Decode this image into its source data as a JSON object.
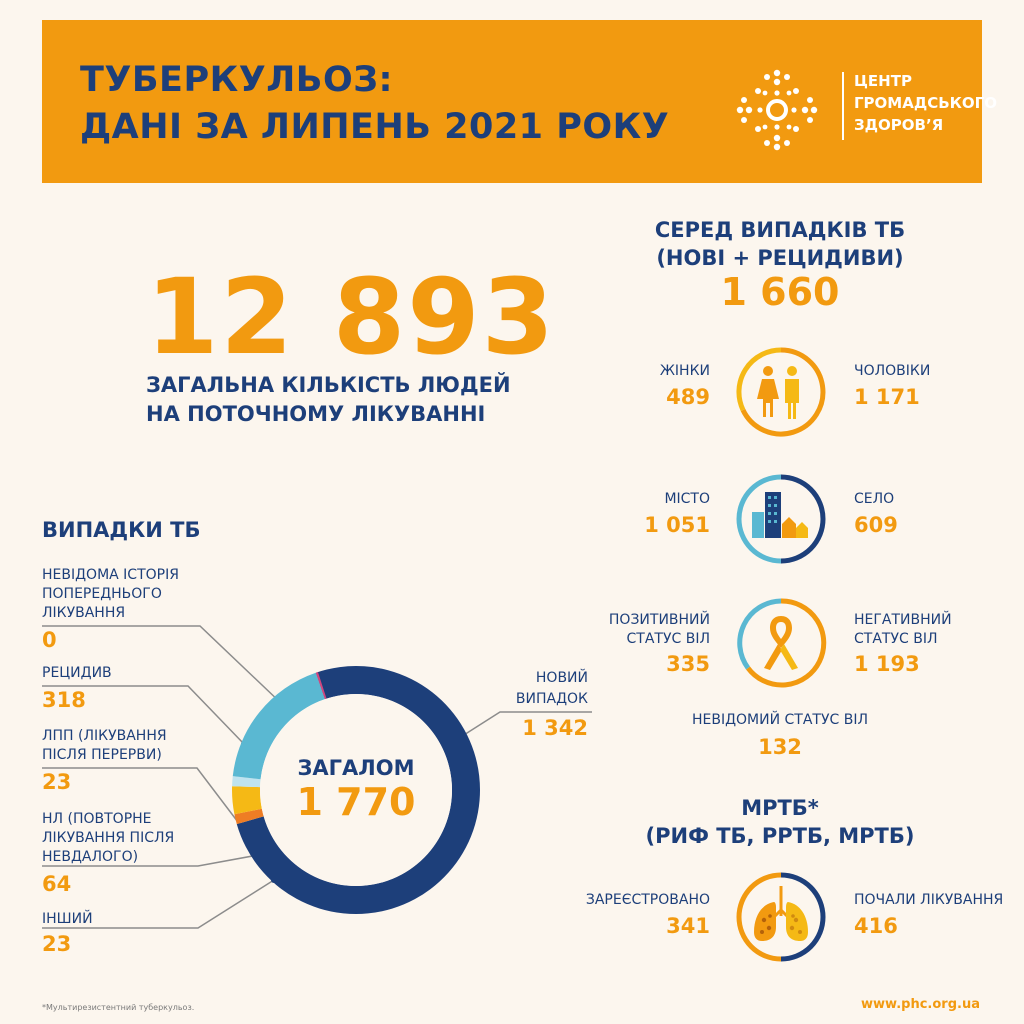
{
  "header": {
    "title_line1": "ТУБЕРКУЛЬОЗ:",
    "title_line2": "ДАНІ ЗА ЛИПЕНЬ 2021 РОКУ",
    "logo_line1": "ЦЕНТР",
    "logo_line2": "ГРОМАДСЬКОГО",
    "logo_line3": "ЗДОРОВ’Я"
  },
  "treatment": {
    "value": "12 893",
    "label_line1": "ЗАГАЛЬНА КІЛЬКІСТЬ ЛЮДЕЙ",
    "label_line2": "НА ПОТОЧНОМУ ЛІКУВАННІ"
  },
  "cases": {
    "title": "ВИПАДКИ ТБ",
    "total_label": "ЗАГАЛОМ",
    "total_value": "1 770",
    "unknown_history_line1": "НЕВІДОМА ІСТОРІЯ",
    "unknown_history_line2": "ПОПЕРЕДНЬОГО",
    "unknown_history_line3": "ЛІКУВАННЯ",
    "unknown_history_value": "0",
    "relapse_label": "РЕЦИДИВ",
    "relapse_value": "318",
    "ltfu_line1": "ЛПП (ЛІКУВАННЯ",
    "ltfu_line2": "ПІСЛЯ ПЕРЕРВИ)",
    "ltfu_value": "23",
    "failure_line1": "НЛ (ПОВТОРНЕ",
    "failure_line2": "ЛІКУВАННЯ ПІСЛЯ",
    "failure_line3": "НЕВДАЛОГО)",
    "failure_value": "64",
    "other_label": "ІНШИЙ",
    "other_value": "23",
    "new_line1": "НОВИЙ",
    "new_line2": "ВИПАДОК",
    "new_value": "1 342"
  },
  "chart_data": {
    "type": "pie",
    "categories": [
      "НОВИЙ ВИПАДОК",
      "ІНШИЙ",
      "НЛ (ПОВТОРНЕ ЛІКУВАННЯ ПІСЛЯ НЕВДАЛОГО)",
      "ЛПП (ЛІКУВАННЯ ПІСЛЯ ПЕРЕРВИ)",
      "РЕЦИДИВ",
      "НЕВІДОМА ІСТОРІЯ ПОПЕРЕДНЬОГО ЛІКУВАННЯ"
    ],
    "values": [
      1342,
      23,
      64,
      23,
      318,
      0
    ],
    "colors": [
      "#1d3f7a",
      "#ee7d24",
      "#f5b915",
      "#bfe3ef",
      "#5ab8d2",
      "#d1467e"
    ],
    "donut": true
  },
  "new_relapse": {
    "title_line1": "СЕРЕД ВИПАДКІВ ТБ",
    "title_line2": "(НОВІ + РЕЦИДИВИ)",
    "value": "1 660",
    "women_label": "ЖІНКИ",
    "women_value": "489",
    "men_label": "ЧОЛОВІКИ",
    "men_value": "1 171",
    "city_label": "МІСТО",
    "city_value": "1 051",
    "village_label": "СЕЛО",
    "village_value": "609",
    "hiv_pos_line1": "ПОЗИТИВНИЙ",
    "hiv_pos_line2": "СТАТУС ВІЛ",
    "hiv_pos_value": "335",
    "hiv_neg_line1": "НЕГАТИВНИЙ",
    "hiv_neg_line2": "СТАТУС  ВІЛ",
    "hiv_neg_value": "1 193",
    "hiv_unknown_label": "НЕВІДОМИЙ СТАТУС ВІЛ",
    "hiv_unknown_value": "132"
  },
  "mdr": {
    "title_line1": "МРТБ*",
    "title_line2": "(РИФ ТБ, РРТБ, МРТБ)",
    "registered_label": "ЗАРЕЄСТРОВАНО",
    "registered_value": "341",
    "started_label": "ПОЧАЛИ ЛІКУВАННЯ",
    "started_value": "416"
  },
  "footer": {
    "footnote": "*Мультирезистентний туберкульоз.",
    "url": "www.phc.org.ua"
  },
  "colors": {
    "orange": "#f29a10",
    "navy": "#1d3f7a",
    "light_blue": "#5ab8d2",
    "yellow": "#f5b915",
    "background": "#fcf6ee"
  }
}
